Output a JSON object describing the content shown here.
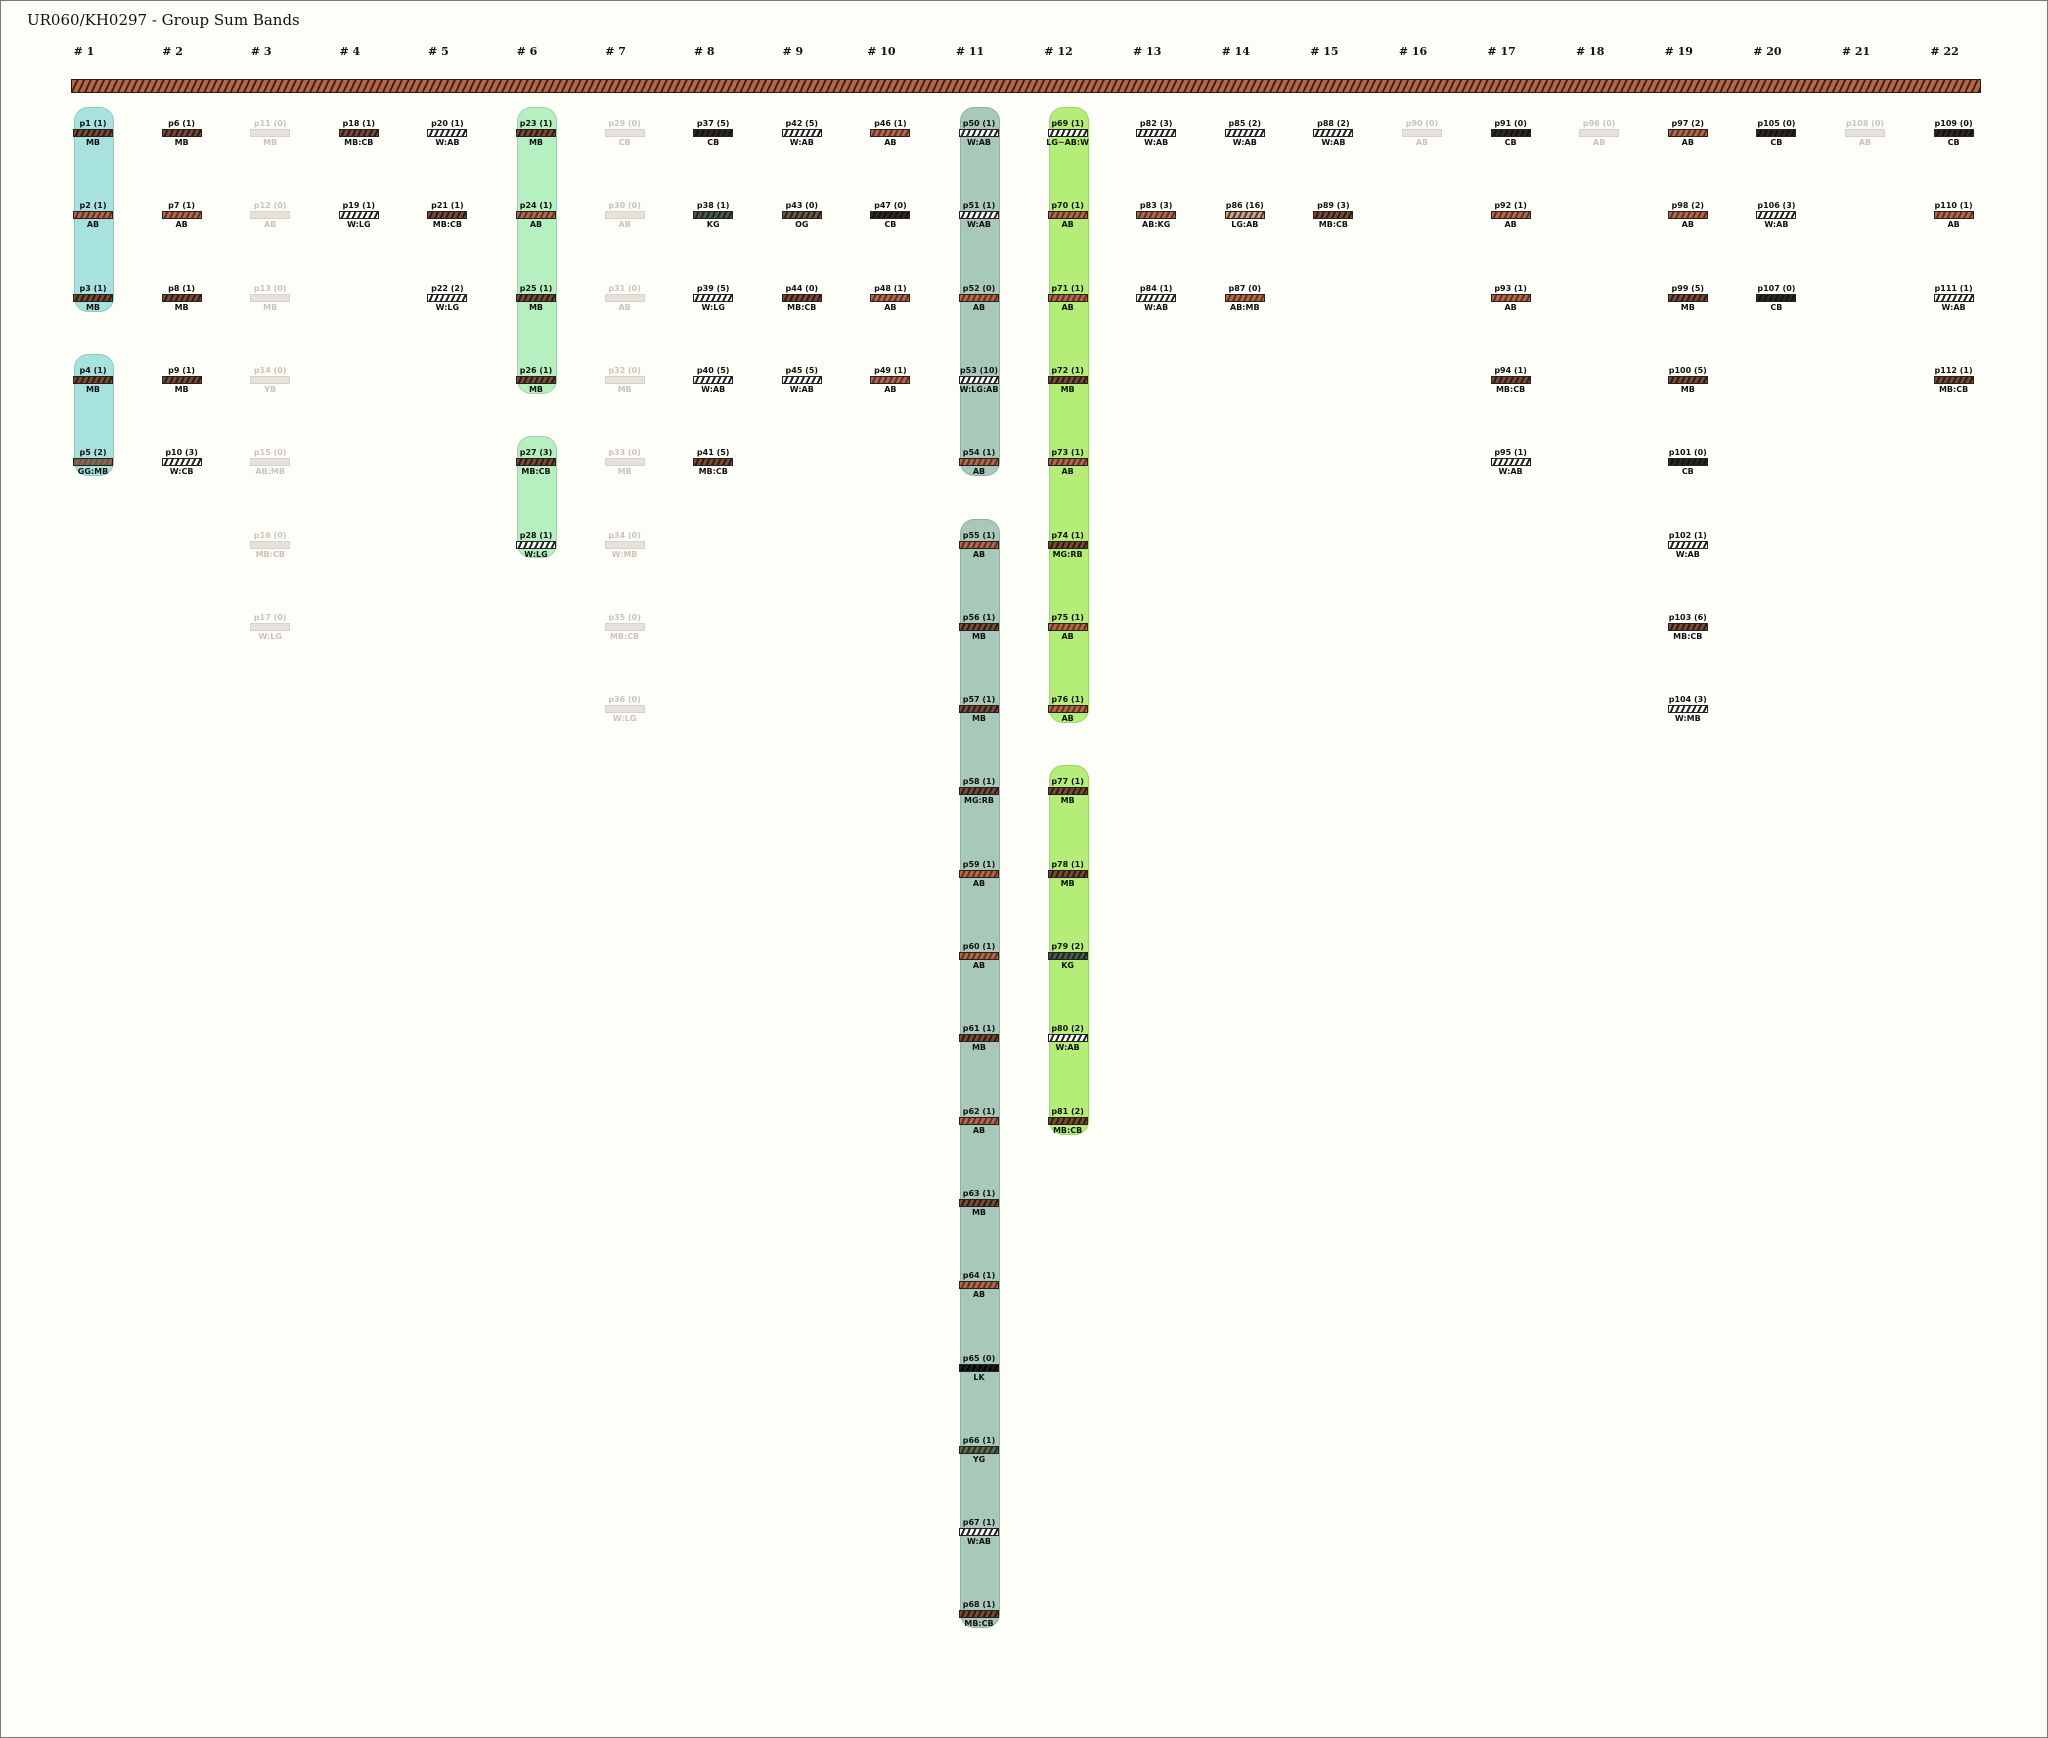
{
  "title": "UR060/KH0297 - Group Sum Bands",
  "columns": [
    "# 1",
    "# 2",
    "# 3",
    "# 4",
    "# 5",
    "# 6",
    "# 7",
    "# 8",
    "# 9",
    "# 10",
    "# 11",
    "# 12",
    "# 13",
    "# 14",
    "# 15",
    "# 16",
    "# 17",
    "# 18",
    "# 19",
    "# 20",
    "# 21",
    "# 22"
  ],
  "colors": {
    "group_col1": "#a7e2de",
    "group_col6": "#b6f0c0",
    "group_col11": "#a8c9b9",
    "group_col12": "#b4ee78",
    "background": "#fefef8"
  },
  "groups": [
    {
      "col": 0,
      "from": 0,
      "to": 2,
      "color": "#a7e2de"
    },
    {
      "col": 0,
      "from": 3,
      "to": 4,
      "color": "#a7e2de"
    },
    {
      "col": 5,
      "from": 0,
      "to": 3,
      "color": "#b6f0c0"
    },
    {
      "col": 5,
      "from": 4,
      "to": 5,
      "color": "#b6f0c0"
    },
    {
      "col": 10,
      "from": 0,
      "to": 4,
      "color": "#a8c9b9"
    },
    {
      "col": 10,
      "from": 5,
      "to": 18,
      "color": "#a8c9b9"
    },
    {
      "col": 11,
      "from": 0,
      "to": 7,
      "color": "#b4ee78"
    },
    {
      "col": 11,
      "from": 8,
      "to": 12,
      "color": "#b4ee78"
    }
  ],
  "plots": [
    {
      "col": 0,
      "row": 0,
      "label": "p1 (1)",
      "sub": "MB",
      "band": "mb"
    },
    {
      "col": 0,
      "row": 1,
      "label": "p2 (1)",
      "sub": "AB",
      "band": "ab"
    },
    {
      "col": 0,
      "row": 2,
      "label": "p3 (1)",
      "sub": "MB",
      "band": "mb"
    },
    {
      "col": 0,
      "row": 3,
      "label": "p4 (1)",
      "sub": "MB",
      "band": "mb"
    },
    {
      "col": 0,
      "row": 4,
      "label": "p5 (2)",
      "sub": "GG:MB",
      "band": "gg"
    },
    {
      "col": 1,
      "row": 0,
      "label": "p6 (1)",
      "sub": "MB",
      "band": "mb"
    },
    {
      "col": 1,
      "row": 1,
      "label": "p7 (1)",
      "sub": "AB",
      "band": "ab"
    },
    {
      "col": 1,
      "row": 2,
      "label": "p8 (1)",
      "sub": "MB",
      "band": "mb"
    },
    {
      "col": 1,
      "row": 3,
      "label": "p9 (1)",
      "sub": "MB",
      "band": "mb"
    },
    {
      "col": 1,
      "row": 4,
      "label": "p10 (3)",
      "sub": "W:CB",
      "band": "w"
    },
    {
      "col": 2,
      "row": 0,
      "label": "p11 (0)",
      "sub": "MB",
      "band": "mb",
      "faint": true
    },
    {
      "col": 2,
      "row": 1,
      "label": "p12 (0)",
      "sub": "AB",
      "band": "ab",
      "faint": true
    },
    {
      "col": 2,
      "row": 2,
      "label": "p13 (0)",
      "sub": "MB",
      "band": "mb",
      "faint": true
    },
    {
      "col": 2,
      "row": 3,
      "label": "p14 (0)",
      "sub": "YB",
      "band": "ab",
      "faint": true
    },
    {
      "col": 2,
      "row": 4,
      "label": "p15 (0)",
      "sub": "AB:MB",
      "band": "ab",
      "faint": true
    },
    {
      "col": 2,
      "row": 5,
      "label": "p16 (0)",
      "sub": "MB:CB",
      "band": "ab",
      "faint": true
    },
    {
      "col": 2,
      "row": 6,
      "label": "p17 (0)",
      "sub": "W:LG",
      "band": "w",
      "faint": true
    },
    {
      "col": 3,
      "row": 0,
      "label": "p18 (1)",
      "sub": "MB:CB",
      "band": "mb"
    },
    {
      "col": 3,
      "row": 1,
      "label": "p19 (1)",
      "sub": "W:LG",
      "band": "w"
    },
    {
      "col": 4,
      "row": 0,
      "label": "p20 (1)",
      "sub": "W:AB",
      "band": "w"
    },
    {
      "col": 4,
      "row": 1,
      "label": "p21 (1)",
      "sub": "MB:CB",
      "band": "mb"
    },
    {
      "col": 4,
      "row": 2,
      "label": "p22 (2)",
      "sub": "W:LG",
      "band": "w"
    },
    {
      "col": 5,
      "row": 0,
      "label": "p23 (1)",
      "sub": "MB",
      "band": "mb"
    },
    {
      "col": 5,
      "row": 1,
      "label": "p24 (1)",
      "sub": "AB",
      "band": "ab"
    },
    {
      "col": 5,
      "row": 2,
      "label": "p25 (1)",
      "sub": "MB",
      "band": "mb"
    },
    {
      "col": 5,
      "row": 3,
      "label": "p26 (1)",
      "sub": "MB",
      "band": "mb"
    },
    {
      "col": 5,
      "row": 4,
      "label": "p27 (3)",
      "sub": "MB:CB",
      "band": "mb"
    },
    {
      "col": 5,
      "row": 5,
      "label": "p28 (1)",
      "sub": "W:LG",
      "band": "w"
    },
    {
      "col": 6,
      "row": 0,
      "label": "p29 (0)",
      "sub": "CB",
      "band": "cb",
      "faint": true
    },
    {
      "col": 6,
      "row": 1,
      "label": "p30 (0)",
      "sub": "AB",
      "band": "ab",
      "faint": true
    },
    {
      "col": 6,
      "row": 2,
      "label": "p31 (0)",
      "sub": "AB",
      "band": "ab",
      "faint": true
    },
    {
      "col": 6,
      "row": 3,
      "label": "p32 (0)",
      "sub": "MB",
      "band": "mb",
      "faint": true
    },
    {
      "col": 6,
      "row": 4,
      "label": "p33 (0)",
      "sub": "MB",
      "band": "mb",
      "faint": true
    },
    {
      "col": 6,
      "row": 5,
      "label": "p34 (0)",
      "sub": "W:MB",
      "band": "w",
      "faint": true
    },
    {
      "col": 6,
      "row": 6,
      "label": "p35 (0)",
      "sub": "MB:CB",
      "band": "mb",
      "faint": true
    },
    {
      "col": 6,
      "row": 7,
      "label": "p36 (0)",
      "sub": "W:LG",
      "band": "w",
      "faint": true
    },
    {
      "col": 7,
      "row": 0,
      "label": "p37 (5)",
      "sub": "CB",
      "band": "cb"
    },
    {
      "col": 7,
      "row": 1,
      "label": "p38 (1)",
      "sub": "KG",
      "band": "kg"
    },
    {
      "col": 7,
      "row": 2,
      "label": "p39 (5)",
      "sub": "W:LG",
      "band": "w"
    },
    {
      "col": 7,
      "row": 3,
      "label": "p40 (5)",
      "sub": "W:AB",
      "band": "w"
    },
    {
      "col": 7,
      "row": 4,
      "label": "p41 (5)",
      "sub": "MB:CB",
      "band": "mb"
    },
    {
      "col": 8,
      "row": 0,
      "label": "p42 (5)",
      "sub": "W:AB",
      "band": "w"
    },
    {
      "col": 8,
      "row": 1,
      "label": "p43 (0)",
      "sub": "OG",
      "band": "og"
    },
    {
      "col": 8,
      "row": 2,
      "label": "p44 (0)",
      "sub": "MB:CB",
      "band": "mb"
    },
    {
      "col": 8,
      "row": 3,
      "label": "p45 (5)",
      "sub": "W:AB",
      "band": "w"
    },
    {
      "col": 9,
      "row": 0,
      "label": "p46 (1)",
      "sub": "AB",
      "band": "ab"
    },
    {
      "col": 9,
      "row": 1,
      "label": "p47 (0)",
      "sub": "CB",
      "band": "cb"
    },
    {
      "col": 9,
      "row": 2,
      "label": "p48 (1)",
      "sub": "AB",
      "band": "ab"
    },
    {
      "col": 9,
      "row": 3,
      "label": "p49 (1)",
      "sub": "AB",
      "band": "ab"
    },
    {
      "col": 10,
      "row": 0,
      "label": "p50 (1)",
      "sub": "W:AB",
      "band": "w"
    },
    {
      "col": 10,
      "row": 1,
      "label": "p51 (1)",
      "sub": "W:AB",
      "band": "w"
    },
    {
      "col": 10,
      "row": 2,
      "label": "p52 (0)",
      "sub": "AB",
      "band": "ab"
    },
    {
      "col": 10,
      "row": 3,
      "label": "p53 (10)",
      "sub": "W:LG:AB",
      "band": "w"
    },
    {
      "col": 10,
      "row": 4,
      "label": "p54 (1)",
      "sub": "AB",
      "band": "ab"
    },
    {
      "col": 10,
      "row": 5,
      "label": "p55 (1)",
      "sub": "AB",
      "band": "ab"
    },
    {
      "col": 10,
      "row": 6,
      "label": "p56 (1)",
      "sub": "MB",
      "band": "mb"
    },
    {
      "col": 10,
      "row": 7,
      "label": "p57 (1)",
      "sub": "MB",
      "band": "mb"
    },
    {
      "col": 10,
      "row": 8,
      "label": "p58 (1)",
      "sub": "MG:RB",
      "band": "mb"
    },
    {
      "col": 10,
      "row": 9,
      "label": "p59 (1)",
      "sub": "AB",
      "band": "ab"
    },
    {
      "col": 10,
      "row": 10,
      "label": "p60 (1)",
      "sub": "AB",
      "band": "ab"
    },
    {
      "col": 10,
      "row": 11,
      "label": "p61 (1)",
      "sub": "MB",
      "band": "mb"
    },
    {
      "col": 10,
      "row": 12,
      "label": "p62 (1)",
      "sub": "AB",
      "band": "ab"
    },
    {
      "col": 10,
      "row": 13,
      "label": "p63 (1)",
      "sub": "MB",
      "band": "mb"
    },
    {
      "col": 10,
      "row": 14,
      "label": "p64 (1)",
      "sub": "AB",
      "band": "ab"
    },
    {
      "col": 10,
      "row": 15,
      "label": "p65 (0)",
      "sub": "LK",
      "band": "lk"
    },
    {
      "col": 10,
      "row": 16,
      "label": "p66 (1)",
      "sub": "YG",
      "band": "yg"
    },
    {
      "col": 10,
      "row": 17,
      "label": "p67 (1)",
      "sub": "W:AB",
      "band": "w"
    },
    {
      "col": 10,
      "row": 18,
      "label": "p68 (1)",
      "sub": "MB:CB",
      "band": "mb"
    },
    {
      "col": 11,
      "row": 0,
      "label": "p69 (1)",
      "sub": "LG~AB:W",
      "band": "w"
    },
    {
      "col": 11,
      "row": 1,
      "label": "p70 (1)",
      "sub": "AB",
      "band": "ab"
    },
    {
      "col": 11,
      "row": 2,
      "label": "p71 (1)",
      "sub": "AB",
      "band": "ab"
    },
    {
      "col": 11,
      "row": 3,
      "label": "p72 (1)",
      "sub": "MB",
      "band": "mb"
    },
    {
      "col": 11,
      "row": 4,
      "label": "p73 (1)",
      "sub": "AB",
      "band": "ab"
    },
    {
      "col": 11,
      "row": 5,
      "label": "p74 (1)",
      "sub": "MG:RB",
      "band": "mb"
    },
    {
      "col": 11,
      "row": 6,
      "label": "p75 (1)",
      "sub": "AB",
      "band": "ab"
    },
    {
      "col": 11,
      "row": 7,
      "label": "p76 (1)",
      "sub": "AB",
      "band": "ab"
    },
    {
      "col": 11,
      "row": 8,
      "label": "p77 (1)",
      "sub": "MB",
      "band": "mb"
    },
    {
      "col": 11,
      "row": 9,
      "label": "p78 (1)",
      "sub": "MB",
      "band": "mb"
    },
    {
      "col": 11,
      "row": 10,
      "label": "p79 (2)",
      "sub": "KG",
      "band": "kg"
    },
    {
      "col": 11,
      "row": 11,
      "label": "p80 (2)",
      "sub": "W:AB",
      "band": "w"
    },
    {
      "col": 11,
      "row": 12,
      "label": "p81 (2)",
      "sub": "MB:CB",
      "band": "mb"
    },
    {
      "col": 12,
      "row": 0,
      "label": "p82 (3)",
      "sub": "W:AB",
      "band": "w"
    },
    {
      "col": 12,
      "row": 1,
      "label": "p83 (3)",
      "sub": "AB:KG",
      "band": "ab"
    },
    {
      "col": 12,
      "row": 2,
      "label": "p84 (1)",
      "sub": "W:AB",
      "band": "w"
    },
    {
      "col": 13,
      "row": 0,
      "label": "p85 (2)",
      "sub": "W:AB",
      "band": "w"
    },
    {
      "col": 13,
      "row": 1,
      "label": "p86 (16)",
      "sub": "LG:AB",
      "band": "lg"
    },
    {
      "col": 13,
      "row": 2,
      "label": "p87 (0)",
      "sub": "AB:MB",
      "band": "ab"
    },
    {
      "col": 14,
      "row": 0,
      "label": "p88 (2)",
      "sub": "W:AB",
      "band": "w"
    },
    {
      "col": 14,
      "row": 1,
      "label": "p89 (3)",
      "sub": "MB:CB",
      "band": "mb"
    },
    {
      "col": 15,
      "row": 0,
      "label": "p90 (0)",
      "sub": "AB",
      "band": "ab",
      "faint": true
    },
    {
      "col": 16,
      "row": 0,
      "label": "p91 (0)",
      "sub": "CB",
      "band": "cb"
    },
    {
      "col": 16,
      "row": 1,
      "label": "p92 (1)",
      "sub": "AB",
      "band": "ab"
    },
    {
      "col": 16,
      "row": 2,
      "label": "p93 (1)",
      "sub": "AB",
      "band": "ab"
    },
    {
      "col": 16,
      "row": 3,
      "label": "p94 (1)",
      "sub": "MB:CB",
      "band": "mb"
    },
    {
      "col": 16,
      "row": 4,
      "label": "p95 (1)",
      "sub": "W:AB",
      "band": "w"
    },
    {
      "col": 17,
      "row": 0,
      "label": "p96 (0)",
      "sub": "AB",
      "band": "ab",
      "faint": true
    },
    {
      "col": 18,
      "row": 0,
      "label": "p97 (2)",
      "sub": "AB",
      "band": "ab"
    },
    {
      "col": 18,
      "row": 1,
      "label": "p98 (2)",
      "sub": "AB",
      "band": "ab"
    },
    {
      "col": 18,
      "row": 2,
      "label": "p99 (5)",
      "sub": "MB",
      "band": "mb"
    },
    {
      "col": 18,
      "row": 3,
      "label": "p100 (5)",
      "sub": "MB",
      "band": "mb"
    },
    {
      "col": 18,
      "row": 4,
      "label": "p101 (0)",
      "sub": "CB",
      "band": "cb"
    },
    {
      "col": 18,
      "row": 5,
      "label": "p102 (1)",
      "sub": "W:AB",
      "band": "w"
    },
    {
      "col": 18,
      "row": 6,
      "label": "p103 (6)",
      "sub": "MB:CB",
      "band": "mb"
    },
    {
      "col": 18,
      "row": 7,
      "label": "p104 (3)",
      "sub": "W:MB",
      "band": "w"
    },
    {
      "col": 19,
      "row": 0,
      "label": "p105 (0)",
      "sub": "CB",
      "band": "cb"
    },
    {
      "col": 19,
      "row": 1,
      "label": "p106 (3)",
      "sub": "W:AB",
      "band": "w"
    },
    {
      "col": 19,
      "row": 2,
      "label": "p107 (0)",
      "sub": "CB",
      "band": "cb"
    },
    {
      "col": 20,
      "row": 0,
      "label": "p108 (0)",
      "sub": "AB",
      "band": "ab",
      "faint": true
    },
    {
      "col": 21,
      "row": 0,
      "label": "p109 (0)",
      "sub": "CB",
      "band": "cb"
    },
    {
      "col": 21,
      "row": 1,
      "label": "p110 (1)",
      "sub": "AB",
      "band": "ab"
    },
    {
      "col": 21,
      "row": 2,
      "label": "p111 (1)",
      "sub": "W:AB",
      "band": "w"
    },
    {
      "col": 21,
      "row": 3,
      "label": "p112 (1)",
      "sub": "MB:CB",
      "band": "mb"
    }
  ]
}
